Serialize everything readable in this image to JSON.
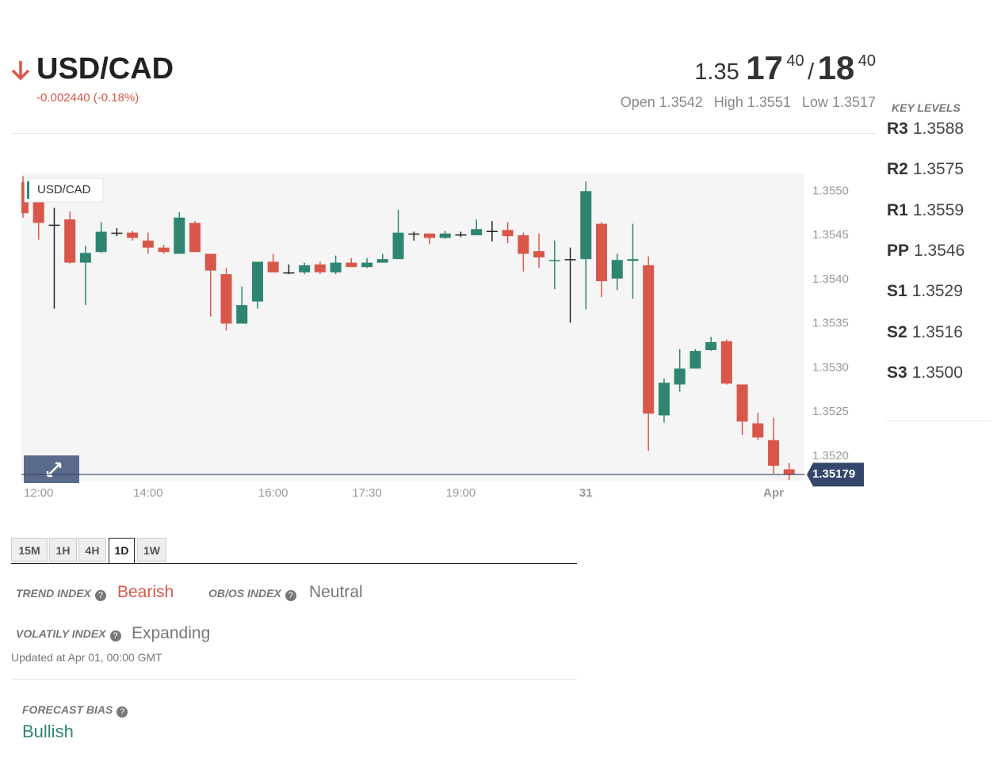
{
  "header": {
    "symbol": "USD/CAD",
    "change": "-0.002440 (-0.18%)",
    "price": {
      "handle": "1.35",
      "bid_pips": "17",
      "bid_frac": "40",
      "separator": "/",
      "ask_pips": "18",
      "ask_frac": "40"
    },
    "stats": [
      {
        "label": "Open",
        "value": "1.3542"
      },
      {
        "label": "High",
        "value": "1.3551"
      },
      {
        "label": "Low",
        "value": "1.3517"
      }
    ]
  },
  "key_levels": {
    "title": "KEY LEVELS",
    "levels": [
      {
        "label": "R3",
        "value": "1.3588"
      },
      {
        "label": "R2",
        "value": "1.3575"
      },
      {
        "label": "R1",
        "value": "1.3559"
      },
      {
        "label": "PP",
        "value": "1.3546"
      },
      {
        "label": "S1",
        "value": "1.3529"
      },
      {
        "label": "S2",
        "value": "1.3516"
      },
      {
        "label": "S3",
        "value": "1.3500"
      }
    ]
  },
  "chart": {
    "type": "candlestick",
    "legend": "USD/CAD",
    "colors": {
      "up": "#2e8572",
      "down": "#d9574a",
      "flat": "#222222",
      "last_price": "#34466b"
    },
    "categories": [
      null,
      "12:00",
      null,
      null,
      null,
      null,
      null,
      null,
      "14:00",
      null,
      null,
      null,
      null,
      null,
      null,
      null,
      "16:00",
      null,
      null,
      null,
      null,
      null,
      "17:30",
      null,
      null,
      null,
      null,
      null,
      "19:00",
      null,
      null,
      null,
      null,
      null,
      null,
      null,
      "31",
      null,
      null,
      null,
      null,
      null,
      null,
      null,
      null,
      null,
      null,
      null,
      "Apr",
      null
    ],
    "open": [
      1.3551,
      1.35488,
      1.35462,
      1.35468,
      1.35419,
      1.35431,
      1.35453,
      1.35453,
      1.35444,
      1.35436,
      1.35429,
      1.35464,
      1.35429,
      1.35406,
      1.3535,
      1.35375,
      1.3542,
      1.35408,
      1.35408,
      1.35417,
      1.35408,
      1.35419,
      1.35414,
      1.35419,
      1.35423,
      1.35452,
      1.35452,
      1.35447,
      1.35451,
      1.3545,
      1.35455,
      1.35456,
      1.3545,
      1.35432,
      1.35421,
      1.35423,
      1.35423,
      1.35463,
      1.35401,
      1.35421,
      1.35416,
      1.35246,
      1.35281,
      1.35299,
      1.3532,
      1.3533,
      1.35281,
      1.35237,
      1.35218,
      1.35185
    ],
    "high": [
      1.35517,
      1.355,
      1.35481,
      1.35477,
      1.35438,
      1.35465,
      1.35458,
      1.35455,
      1.35453,
      1.35439,
      1.35476,
      1.35466,
      1.35429,
      1.35413,
      1.35392,
      1.3542,
      1.35429,
      1.35417,
      1.35419,
      1.3542,
      1.35427,
      1.35424,
      1.35424,
      1.35429,
      1.35479,
      1.35454,
      1.35452,
      1.35455,
      1.35454,
      1.35468,
      1.35466,
      1.35465,
      1.35453,
      1.35452,
      1.35444,
      1.35436,
      1.35511,
      1.35465,
      1.35429,
      1.35463,
      1.35426,
      1.35288,
      1.35321,
      1.35321,
      1.35335,
      1.35332,
      1.35281,
      1.35249,
      1.35243,
      1.35192
    ],
    "low": [
      1.3547,
      1.35445,
      1.35367,
      1.35418,
      1.35371,
      1.3543,
      1.35449,
      1.35444,
      1.35429,
      1.35429,
      1.35429,
      1.35431,
      1.35358,
      1.35342,
      1.3535,
      1.35367,
      1.35408,
      1.35406,
      1.35406,
      1.35406,
      1.35406,
      1.35414,
      1.35413,
      1.35419,
      1.35423,
      1.35444,
      1.3544,
      1.35446,
      1.35448,
      1.3545,
      1.35443,
      1.35441,
      1.35409,
      1.35413,
      1.35389,
      1.35351,
      1.35366,
      1.3538,
      1.35388,
      1.35378,
      1.35206,
      1.35238,
      1.35273,
      1.35299,
      1.35319,
      1.35281,
      1.35224,
      1.35218,
      1.3518,
      1.35173
    ],
    "close": [
      1.35475,
      1.35464,
      1.35462,
      1.35419,
      1.3543,
      1.35454,
      1.35453,
      1.35447,
      1.35436,
      1.35431,
      1.3547,
      1.35431,
      1.3541,
      1.3535,
      1.35371,
      1.3542,
      1.35408,
      1.35408,
      1.35416,
      1.35408,
      1.35419,
      1.35414,
      1.35419,
      1.35423,
      1.35453,
      1.35452,
      1.35447,
      1.35452,
      1.35451,
      1.35457,
      1.35455,
      1.35449,
      1.35429,
      1.35425,
      1.35422,
      1.35423,
      1.355,
      1.35398,
      1.35422,
      1.35423,
      1.35248,
      1.35283,
      1.35299,
      1.35319,
      1.35329,
      1.35282,
      1.35239,
      1.35221,
      1.35189,
      1.35179
    ],
    "ylim": [
      1.35172,
      1.3552
    ],
    "yticks": [
      {
        "value": 1.352,
        "label": "1.3520"
      },
      1.3525,
      {
        "value": 1.353,
        "label": "1.3530"
      },
      1.3535,
      {
        "value": 1.354,
        "label": "1.3540"
      },
      1.3545,
      {
        "value": 1.355,
        "label": "1.3550"
      }
    ],
    "last_price": 1.35179
  },
  "timeframes": {
    "items": [
      "15M",
      "1H",
      "4H",
      "1D",
      "1W"
    ],
    "active": 3
  },
  "indicators": {
    "trend": {
      "label": "TREND INDEX",
      "value": "Bearish"
    },
    "obos": {
      "label": "OB/OS INDEX",
      "value": "Neutral"
    },
    "volatility": {
      "label": "VOLATILY INDEX",
      "value": "Expanding"
    },
    "updated": "Updated at Apr 01, 00:00 GMT"
  },
  "forecast": {
    "label": "FORECAST BIAS",
    "value": "Bullish"
  }
}
